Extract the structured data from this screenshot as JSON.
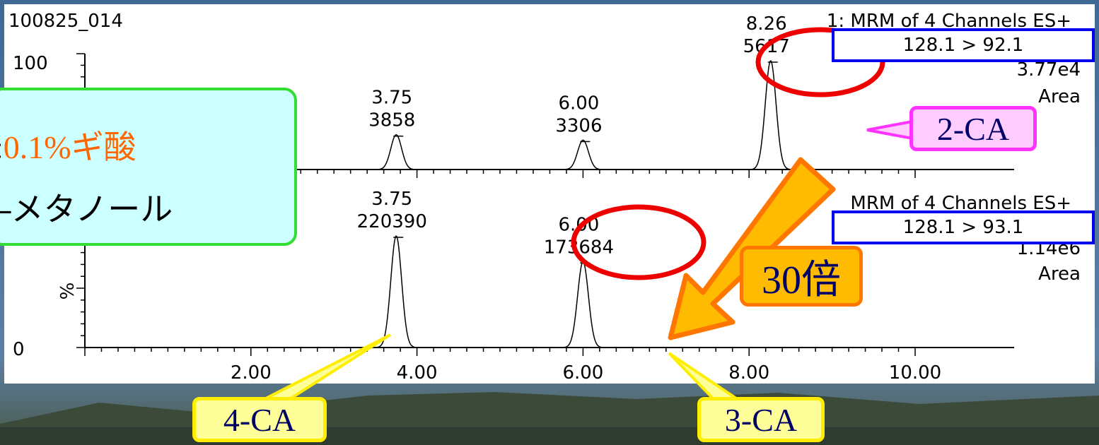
{
  "chart_data": [
    {
      "type": "line",
      "title": "100825_014",
      "channel_label": "1: MRM of 4 Channels ES+",
      "transition": "128.1 > 92.1",
      "scale": "3.77e4",
      "mode": "Area",
      "y_tick_top": "100",
      "xlim": [
        0,
        10
      ],
      "peaks": [
        {
          "rt": "3.75",
          "area": "3858",
          "x": 3.75,
          "height": 0.32
        },
        {
          "rt": "6.00",
          "area": "3306",
          "x": 6.0,
          "height": 0.27
        },
        {
          "rt": "8.26",
          "area": "5617",
          "x": 8.26,
          "height": 1.0
        }
      ]
    },
    {
      "type": "line",
      "channel_label": "MRM of 4 Channels ES+",
      "transition": "128.1 > 93.1",
      "scale": "1.14e6",
      "mode": "Area",
      "ylabel": "%",
      "y_tick_bottom": "0",
      "xlim": [
        0,
        10
      ],
      "x_ticks": [
        "2.00",
        "4.00",
        "6.00",
        "8.00",
        "10.00"
      ],
      "peaks": [
        {
          "rt": "3.75",
          "area": "220390",
          "x": 3.75,
          "height": 1.0
        },
        {
          "rt": "6.00",
          "area": "173684",
          "x": 6.0,
          "height": 0.77
        }
      ]
    }
  ],
  "legend": {
    "line1_prefix": ":",
    "line1_highlight": "0.1%ギ酸",
    "line2": "–メタノール"
  },
  "callouts": {
    "ca2": "2-CA",
    "ca3": "3-CA",
    "ca4": "4-CA",
    "factor": "30倍"
  },
  "colors": {
    "ellipse": "#ee0000",
    "mrm_box": "#0000ee",
    "ca2_fill": "#ffccff",
    "ca2_border": "#ff33ff",
    "yellow_fill": "#ffff99",
    "yellow_border": "#ffee00",
    "arrow_fill": "#ffbb00",
    "arrow_border": "#ff7700",
    "legend_fill": "#ccffff",
    "legend_border": "#33dd33"
  }
}
